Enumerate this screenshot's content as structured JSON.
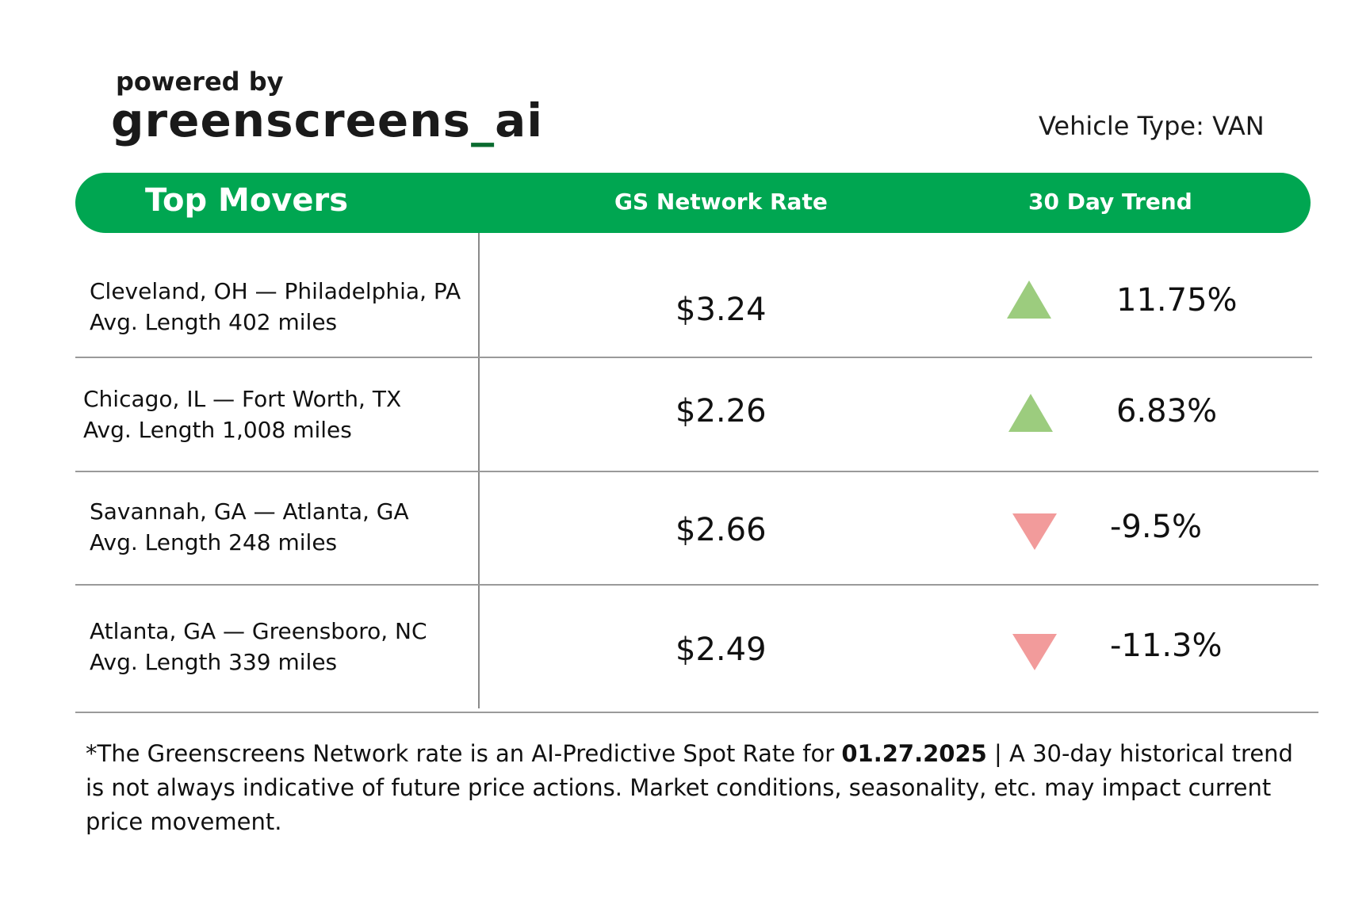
{
  "brand": {
    "tagline": "powered by",
    "name_main": "greenscreens",
    "name_underscore": "_",
    "name_suffix": "ai"
  },
  "vehicle_type": "Vehicle Type: VAN",
  "header": {
    "col1": "Top Movers",
    "col2": "GS Network Rate",
    "col3": "30 Day Trend"
  },
  "colors": {
    "accent_green": "#00a651",
    "trend_up": "#9ccc7e",
    "trend_down": "#f29b9b"
  },
  "rows": [
    {
      "lane": "Cleveland, OH — Philadelphia, PA",
      "length": "Avg. Length 402  miles",
      "rate": "$3.24",
      "trend_direction": "up",
      "trend_icon": "triangle-up-icon",
      "trend_pct": "11.75%"
    },
    {
      "lane": "Chicago, IL — Fort Worth, TX",
      "length": "Avg. Length 1,008 miles",
      "rate": "$2.26",
      "trend_direction": "up",
      "trend_icon": "triangle-up-icon",
      "trend_pct": "6.83%"
    },
    {
      "lane": "Savannah, GA — Atlanta, GA",
      "length": "Avg. Length 248 miles",
      "rate": "$2.66",
      "trend_direction": "down",
      "trend_icon": "triangle-down-icon",
      "trend_pct": "-9.5%"
    },
    {
      "lane": "Atlanta, GA — Greensboro, NC",
      "length": "Avg. Length 339 miles",
      "rate": "$2.49",
      "trend_direction": "down",
      "trend_icon": "triangle-down-icon",
      "trend_pct": "-11.3%"
    }
  ],
  "footnote": {
    "before_date": "*The Greenscreens Network rate is an AI-Predictive Spot Rate for ",
    "date": "01.27.2025",
    "after_date": " | A 30-day historical trend is not always indicative of future price actions. Market conditions, seasonality, etc. may impact current price movement."
  }
}
